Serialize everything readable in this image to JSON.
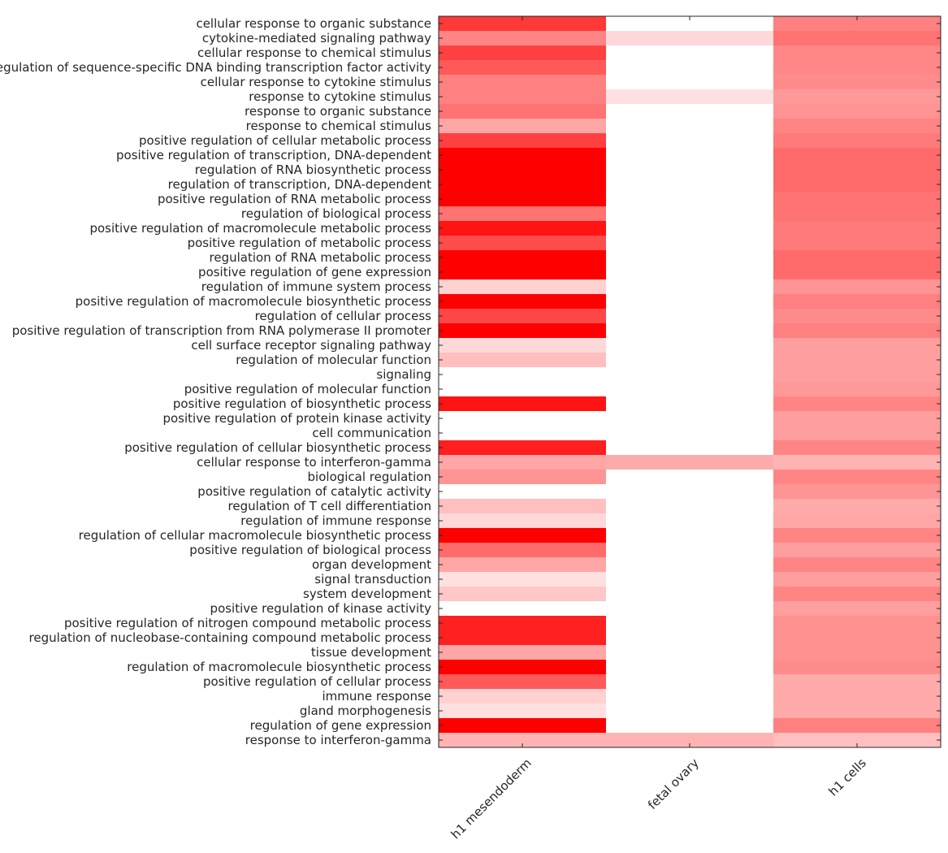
{
  "chart_data": {
    "type": "heatmap",
    "title": "",
    "xlabel": "",
    "ylabel": "",
    "color_scale": {
      "low": "#ffffff",
      "high": "#ff0000",
      "range": [
        0,
        1
      ]
    },
    "columns": [
      "h1 mesendoderm",
      "fetal ovary",
      "h1 cells"
    ],
    "rows": [
      {
        "label": "cellular response to organic substance",
        "values": [
          0.78,
          0,
          0.5
        ]
      },
      {
        "label": "cytokine-mediated signaling pathway",
        "values": [
          0.48,
          0.15,
          0.55
        ]
      },
      {
        "label": "cellular response to chemical stimulus",
        "values": [
          0.75,
          0,
          0.47
        ]
      },
      {
        "label": "regulation of sequence-specific DNA binding transcription factor activity",
        "values": [
          0.65,
          0,
          0.47
        ]
      },
      {
        "label": "cellular response to cytokine stimulus",
        "values": [
          0.5,
          0,
          0.45
        ]
      },
      {
        "label": "response to cytokine stimulus",
        "values": [
          0.5,
          0.12,
          0.4
        ]
      },
      {
        "label": "response to organic substance",
        "values": [
          0.55,
          0,
          0.42
        ]
      },
      {
        "label": "response to chemical stimulus",
        "values": [
          0.35,
          0,
          0.48
        ]
      },
      {
        "label": "positive regulation of cellular metabolic process",
        "values": [
          0.75,
          0,
          0.52
        ]
      },
      {
        "label": "positive regulation of transcription, DNA-dependent",
        "values": [
          1,
          0,
          0.58
        ]
      },
      {
        "label": "regulation of RNA biosynthetic process",
        "values": [
          1,
          0,
          0.58
        ]
      },
      {
        "label": "regulation of transcription, DNA-dependent",
        "values": [
          1,
          0,
          0.58
        ]
      },
      {
        "label": "positive regulation of RNA metabolic process",
        "values": [
          1,
          0,
          0.55
        ]
      },
      {
        "label": "regulation of biological process",
        "values": [
          0.55,
          0,
          0.55
        ]
      },
      {
        "label": "positive regulation of macromolecule metabolic process",
        "values": [
          0.92,
          0,
          0.52
        ]
      },
      {
        "label": "positive regulation of metabolic process",
        "values": [
          0.7,
          0,
          0.52
        ]
      },
      {
        "label": "regulation of RNA metabolic process",
        "values": [
          1,
          0,
          0.58
        ]
      },
      {
        "label": "positive regulation of gene expression",
        "values": [
          1,
          0,
          0.58
        ]
      },
      {
        "label": "regulation of immune system process",
        "values": [
          0.18,
          0,
          0.42
        ]
      },
      {
        "label": "positive regulation of macromolecule biosynthetic process",
        "values": [
          1,
          0,
          0.5
        ]
      },
      {
        "label": "regulation of cellular process",
        "values": [
          0.72,
          0,
          0.45
        ]
      },
      {
        "label": "positive regulation of transcription from RNA polymerase II promoter",
        "values": [
          1,
          0,
          0.5
        ]
      },
      {
        "label": "cell surface receptor signaling pathway",
        "values": [
          0.15,
          0,
          0.38
        ]
      },
      {
        "label": "regulation of molecular function",
        "values": [
          0.25,
          0,
          0.38
        ]
      },
      {
        "label": "signaling",
        "values": [
          0,
          0,
          0.38
        ]
      },
      {
        "label": "positive regulation of molecular function",
        "values": [
          0,
          0,
          0.4
        ]
      },
      {
        "label": "positive regulation of biosynthetic process",
        "values": [
          0.93,
          0,
          0.48
        ]
      },
      {
        "label": "positive regulation of protein kinase activity",
        "values": [
          0,
          0,
          0.38
        ]
      },
      {
        "label": "cell communication",
        "values": [
          0,
          0,
          0.38
        ]
      },
      {
        "label": "positive regulation of cellular biosynthetic process",
        "values": [
          0.88,
          0,
          0.48
        ]
      },
      {
        "label": "cellular response to interferon-gamma",
        "values": [
          0.35,
          0.33,
          0.3
        ]
      },
      {
        "label": "biological regulation",
        "values": [
          0.42,
          0,
          0.48
        ]
      },
      {
        "label": "positive regulation of catalytic activity",
        "values": [
          0,
          0,
          0.42
        ]
      },
      {
        "label": "regulation of T cell differentiation",
        "values": [
          0.25,
          0,
          0.33
        ]
      },
      {
        "label": "regulation of immune response",
        "values": [
          0.15,
          0,
          0.35
        ]
      },
      {
        "label": "regulation of cellular macromolecule biosynthetic process",
        "values": [
          1,
          0,
          0.48
        ]
      },
      {
        "label": "positive regulation of biological process",
        "values": [
          0.58,
          0,
          0.38
        ]
      },
      {
        "label": "organ development",
        "values": [
          0.35,
          0,
          0.48
        ]
      },
      {
        "label": "signal transduction",
        "values": [
          0.12,
          0,
          0.38
        ]
      },
      {
        "label": "system development",
        "values": [
          0.22,
          0,
          0.48
        ]
      },
      {
        "label": "positive regulation of kinase activity",
        "values": [
          0,
          0,
          0.38
        ]
      },
      {
        "label": "positive regulation of nitrogen compound metabolic process",
        "values": [
          0.87,
          0,
          0.43
        ]
      },
      {
        "label": "regulation of nucleobase-containing compound metabolic process",
        "values": [
          0.87,
          0,
          0.43
        ]
      },
      {
        "label": "tissue development",
        "values": [
          0.35,
          0,
          0.43
        ]
      },
      {
        "label": "regulation of macromolecule biosynthetic process",
        "values": [
          1,
          0,
          0.45
        ]
      },
      {
        "label": "positive regulation of cellular process",
        "values": [
          0.65,
          0,
          0.33
        ]
      },
      {
        "label": "immune response",
        "values": [
          0.18,
          0,
          0.33
        ]
      },
      {
        "label": "gland morphogenesis",
        "values": [
          0.12,
          0,
          0.33
        ]
      },
      {
        "label": "regulation of gene expression",
        "values": [
          1,
          0,
          0.5
        ]
      },
      {
        "label": "response to interferon-gamma",
        "values": [
          0.3,
          0.3,
          0.25
        ]
      }
    ]
  }
}
